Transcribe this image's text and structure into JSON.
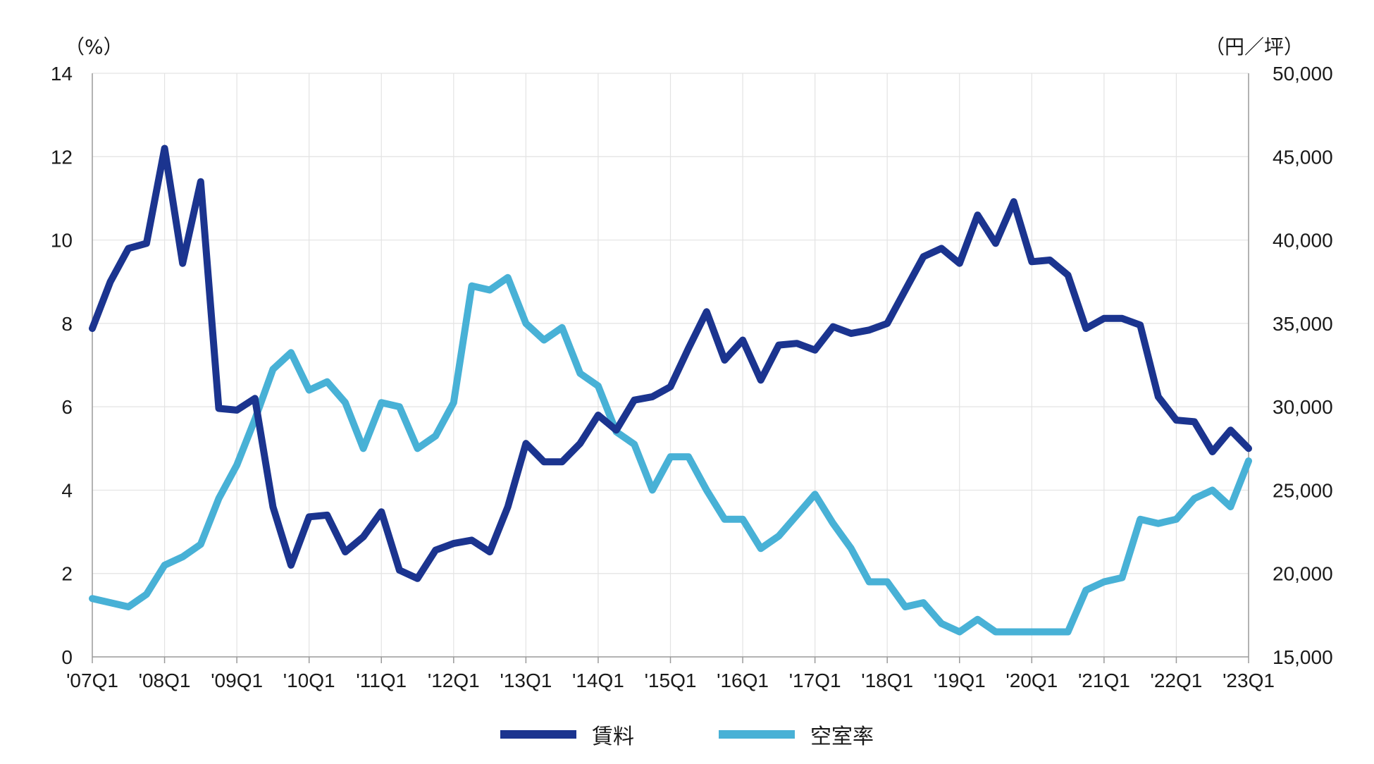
{
  "chart_data": {
    "type": "line",
    "title": "",
    "left_axis": {
      "unit_label": "（%）",
      "ylim": [
        0,
        14
      ],
      "ticks": [
        "0",
        "2",
        "4",
        "6",
        "8",
        "10",
        "12",
        "14"
      ]
    },
    "right_axis": {
      "unit_label": "（円／坪）",
      "ylim": [
        15000,
        50000
      ],
      "ticks": [
        "15,000",
        "20,000",
        "25,000",
        "30,000",
        "35,000",
        "40,000",
        "45,000",
        "50,000"
      ]
    },
    "x_tick_labels": [
      "'07Q1",
      "'08Q1",
      "'09Q1",
      "'10Q1",
      "'11Q1",
      "'12Q1",
      "'13Q1",
      "'14Q1",
      "'15Q1",
      "'16Q1",
      "'17Q1",
      "'18Q1",
      "'19Q1",
      "'20Q1",
      "'21Q1",
      "'22Q1",
      "'23Q1"
    ],
    "grid": true,
    "legend_position": "bottom-center",
    "series": [
      {
        "name": "賃料",
        "axis": "right",
        "color": "#1b348f",
        "values": [
          34700,
          37500,
          39500,
          39800,
          45500,
          38600,
          43500,
          29900,
          29800,
          30500,
          24000,
          20500,
          23400,
          23500,
          21300,
          22200,
          23700,
          20200,
          19700,
          21400,
          21800,
          22000,
          21300,
          24000,
          27800,
          26700,
          26700,
          27800,
          29500,
          28600,
          30400,
          30600,
          31200,
          33500,
          35700,
          32800,
          34000,
          31600,
          33700,
          33800,
          33400,
          34800,
          34400,
          34600,
          35000,
          37000,
          39000,
          39500,
          38600,
          41500,
          39800,
          42300,
          38700,
          38800,
          37900,
          34700,
          35300,
          35300,
          34900,
          30600,
          29200,
          29100,
          27300,
          28600,
          27500
        ]
      },
      {
        "name": "空室率",
        "axis": "left",
        "color": "#48b1d6",
        "values": [
          1.4,
          1.3,
          1.2,
          1.5,
          2.2,
          2.4,
          2.7,
          3.8,
          4.6,
          5.7,
          6.9,
          7.3,
          6.4,
          6.6,
          6.1,
          5.0,
          6.1,
          6.0,
          5.0,
          5.3,
          6.1,
          8.9,
          8.8,
          9.1,
          8.0,
          7.6,
          7.9,
          6.8,
          6.5,
          5.4,
          5.1,
          4.0,
          4.8,
          4.8,
          4.0,
          3.3,
          3.3,
          2.6,
          2.9,
          3.4,
          3.9,
          3.2,
          2.6,
          1.8,
          1.8,
          1.2,
          1.3,
          0.8,
          0.6,
          0.9,
          0.6,
          0.6,
          0.6,
          0.6,
          0.6,
          1.6,
          1.8,
          1.9,
          3.3,
          3.2,
          3.3,
          3.8,
          4.0,
          3.6,
          4.7
        ]
      }
    ]
  }
}
